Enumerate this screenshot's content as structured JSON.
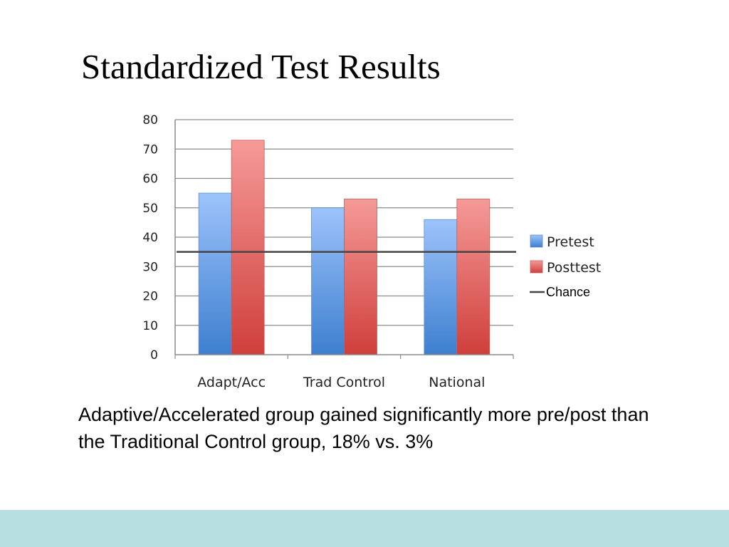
{
  "title": "Standardized Test Results",
  "caption": "Adaptive/Accelerated group gained significantly more pre/post than the Traditional Control group, 18% vs. 3%",
  "colors": {
    "pretest": "#6a9fe6",
    "posttest": "#e06868",
    "chance": "#444444",
    "gridline": "#8c8c8c",
    "footer": "#b7dfe2"
  },
  "chart_data": {
    "type": "bar",
    "categories": [
      "Adapt/Acc",
      "Trad Control",
      "National"
    ],
    "series": [
      {
        "name": "Pretest",
        "values": [
          55,
          50,
          46
        ]
      },
      {
        "name": "Posttest",
        "values": [
          73,
          53,
          53
        ]
      }
    ],
    "reference_line": {
      "name": "Chance",
      "value": 35
    },
    "ylim": [
      0,
      80
    ],
    "yticks": [
      "0",
      "10",
      "20",
      "30",
      "40",
      "50",
      "60",
      "70",
      "80"
    ],
    "grid": true,
    "legend_position": "right",
    "title": "",
    "xlabel": "",
    "ylabel": ""
  }
}
